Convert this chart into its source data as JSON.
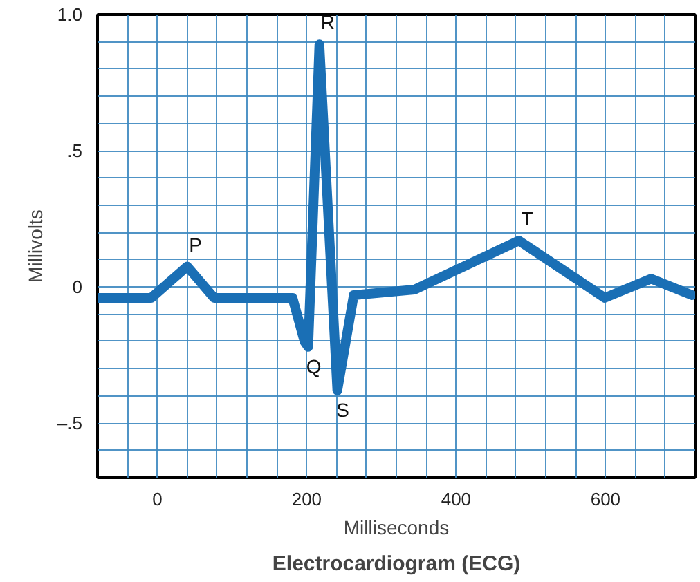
{
  "chart_data": {
    "type": "line",
    "title": "Electrocardiogram (ECG)",
    "xlabel": "Milliseconds",
    "ylabel": "Millivolts",
    "x": [
      -80,
      -8,
      40,
      76,
      181,
      197,
      202,
      217,
      241,
      263,
      344,
      484,
      599,
      661,
      716
    ],
    "series": [
      {
        "color": "#1a6fb5",
        "values": [
          -0.04,
          -0.04,
          0.075,
          -0.04,
          -0.04,
          -0.2,
          -0.22,
          0.89,
          -0.38,
          -0.03,
          -0.01,
          0.17,
          -0.04,
          0.03,
          -0.03
        ]
      }
    ],
    "xlim": [
      -80,
      720
    ],
    "ylim": [
      -0.7,
      1.0
    ],
    "xticks": [
      0,
      200,
      400,
      600
    ],
    "yticks": [
      {
        "value": 1.0,
        "label": "1.0"
      },
      {
        "value": 0.5,
        "label": ".5"
      },
      0,
      {
        "value": -0.5,
        "label": "–.5"
      }
    ],
    "grid": true,
    "marker": "none",
    "line_style": "solid",
    "annotations": [
      {
        "text": "P",
        "x": 40,
        "y": 0.075
      },
      {
        "text": "Q",
        "x": 202,
        "y": -0.22
      },
      {
        "text": "R",
        "x": 217,
        "y": 0.89
      },
      {
        "text": "S",
        "x": 241,
        "y": -0.38
      },
      {
        "text": "T",
        "x": 484,
        "y": 0.17
      }
    ]
  }
}
